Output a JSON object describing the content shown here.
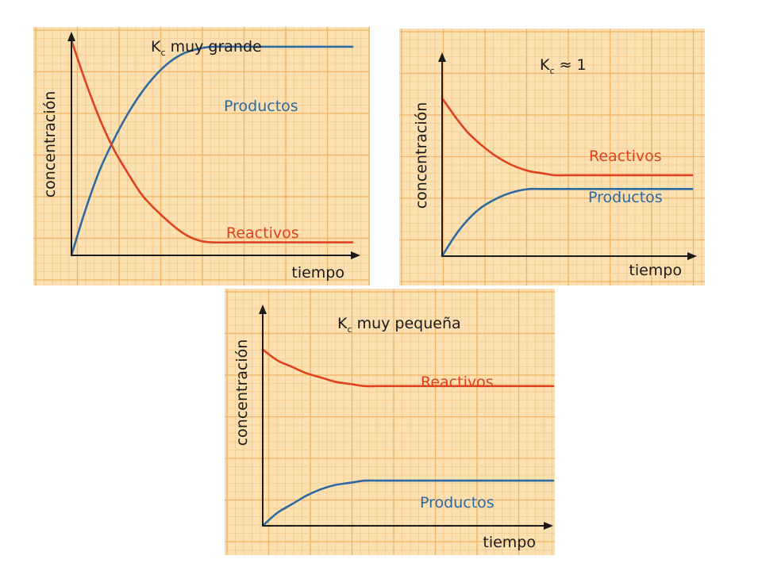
{
  "colors": {
    "background": "#fbe0b2",
    "grid_minor": "#f6c88a",
    "grid_major": "#f0b264",
    "productos": "#2d6aa2",
    "reactivos": "#e0411f",
    "axis": "#1a1a1a"
  },
  "chart_data": [
    {
      "type": "line",
      "title": {
        "main": "K",
        "subscript": "c",
        "rest": " muy grande"
      },
      "xlabel": "tiempo",
      "ylabel": "concentración",
      "grid": true,
      "xlim": [
        0,
        10
      ],
      "ylim": [
        0,
        10
      ],
      "x": [
        0,
        0.5,
        1,
        1.5,
        2,
        2.5,
        3,
        3.5,
        4,
        4.5,
        5,
        6,
        7,
        8,
        9,
        10
      ],
      "series": [
        {
          "name": "Productos",
          "color": "#2d6aa2",
          "values": [
            0,
            2.1,
            3.9,
            5.3,
            6.5,
            7.5,
            8.3,
            8.9,
            9.3,
            9.5,
            9.6,
            9.6,
            9.6,
            9.6,
            9.6,
            9.6
          ]
        },
        {
          "name": "Reactivos",
          "color": "#e0411f",
          "values": [
            9.9,
            8.0,
            6.3,
            4.9,
            3.8,
            2.8,
            2.1,
            1.5,
            1.0,
            0.7,
            0.6,
            0.6,
            0.6,
            0.6,
            0.6,
            0.6
          ]
        }
      ]
    },
    {
      "type": "line",
      "title": {
        "main": "K",
        "subscript": "c",
        "rest": " ≈ 1"
      },
      "xlabel": "tiempo",
      "ylabel": "concentración",
      "grid": true,
      "xlim": [
        0,
        10
      ],
      "ylim": [
        0,
        10
      ],
      "x": [
        0,
        0.5,
        1,
        1.5,
        2,
        2.5,
        3,
        3.5,
        4,
        4.5,
        5,
        6,
        7,
        8,
        9,
        10
      ],
      "series": [
        {
          "name": "Reactivos",
          "color": "#e0411f",
          "values": [
            8.0,
            7.1,
            6.3,
            5.7,
            5.2,
            4.8,
            4.5,
            4.3,
            4.2,
            4.1,
            4.1,
            4.1,
            4.1,
            4.1,
            4.1,
            4.1
          ]
        },
        {
          "name": "Productos",
          "color": "#2d6aa2",
          "values": [
            0,
            1.0,
            1.8,
            2.4,
            2.8,
            3.1,
            3.3,
            3.4,
            3.4,
            3.4,
            3.4,
            3.4,
            3.4,
            3.4,
            3.4,
            3.4
          ]
        }
      ]
    },
    {
      "type": "line",
      "title": {
        "main": "K",
        "subscript": "c",
        "rest": " muy pequeña"
      },
      "xlabel": "tiempo",
      "ylabel": "concentración",
      "grid": true,
      "xlim": [
        0,
        10
      ],
      "ylim": [
        0,
        10
      ],
      "x": [
        0,
        0.5,
        1,
        1.5,
        2,
        2.5,
        3,
        3.5,
        4,
        4.5,
        5,
        6,
        7,
        8,
        9,
        10
      ],
      "series": [
        {
          "name": "Reactivos",
          "color": "#e0411f",
          "values": [
            8.2,
            7.7,
            7.4,
            7.1,
            6.9,
            6.7,
            6.6,
            6.5,
            6.5,
            6.5,
            6.5,
            6.5,
            6.5,
            6.5,
            6.5,
            6.5
          ]
        },
        {
          "name": "Productos",
          "color": "#2d6aa2",
          "values": [
            0,
            0.6,
            1.0,
            1.4,
            1.7,
            1.9,
            2.0,
            2.1,
            2.1,
            2.1,
            2.1,
            2.1,
            2.1,
            2.1,
            2.1,
            2.1
          ]
        }
      ]
    }
  ]
}
